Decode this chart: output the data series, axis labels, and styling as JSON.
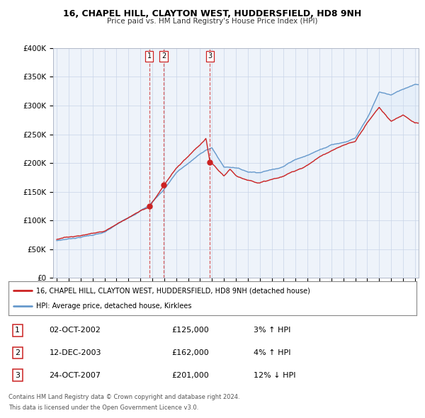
{
  "title": "16, CHAPEL HILL, CLAYTON WEST, HUDDERSFIELD, HD8 9NH",
  "subtitle": "Price paid vs. HM Land Registry's House Price Index (HPI)",
  "ylim": [
    0,
    400000
  ],
  "yticks": [
    0,
    50000,
    100000,
    150000,
    200000,
    250000,
    300000,
    350000,
    400000
  ],
  "ytick_labels": [
    "£0",
    "£50K",
    "£100K",
    "£150K",
    "£200K",
    "£250K",
    "£300K",
    "£350K",
    "£400K"
  ],
  "xlim_start": 1995,
  "xlim_end": 2025.3,
  "sale_dates": [
    2002.75,
    2003.95,
    2007.81
  ],
  "sale_prices": [
    125000,
    162000,
    201000
  ],
  "sale_labels": [
    "1",
    "2",
    "3"
  ],
  "sale_date_strings": [
    "02-OCT-2002",
    "12-DEC-2003",
    "24-OCT-2007"
  ],
  "sale_price_strings": [
    "£125,000",
    "£162,000",
    "£201,000"
  ],
  "sale_hpi_strings": [
    "3% ↑ HPI",
    "4% ↑ HPI",
    "12% ↓ HPI"
  ],
  "legend_line1": "16, CHAPEL HILL, CLAYTON WEST, HUDDERSFIELD, HD8 9NH (detached house)",
  "legend_line2": "HPI: Average price, detached house, Kirklees",
  "footer1": "Contains HM Land Registry data © Crown copyright and database right 2024.",
  "footer2": "This data is licensed under the Open Government Licence v3.0.",
  "background_color": "#ffffff",
  "chart_bg_color": "#eef3fa",
  "grid_color": "#c8d4e8",
  "red_line_color": "#cc2222",
  "blue_line_color": "#6699cc",
  "fill_color": "#d0e4f7"
}
